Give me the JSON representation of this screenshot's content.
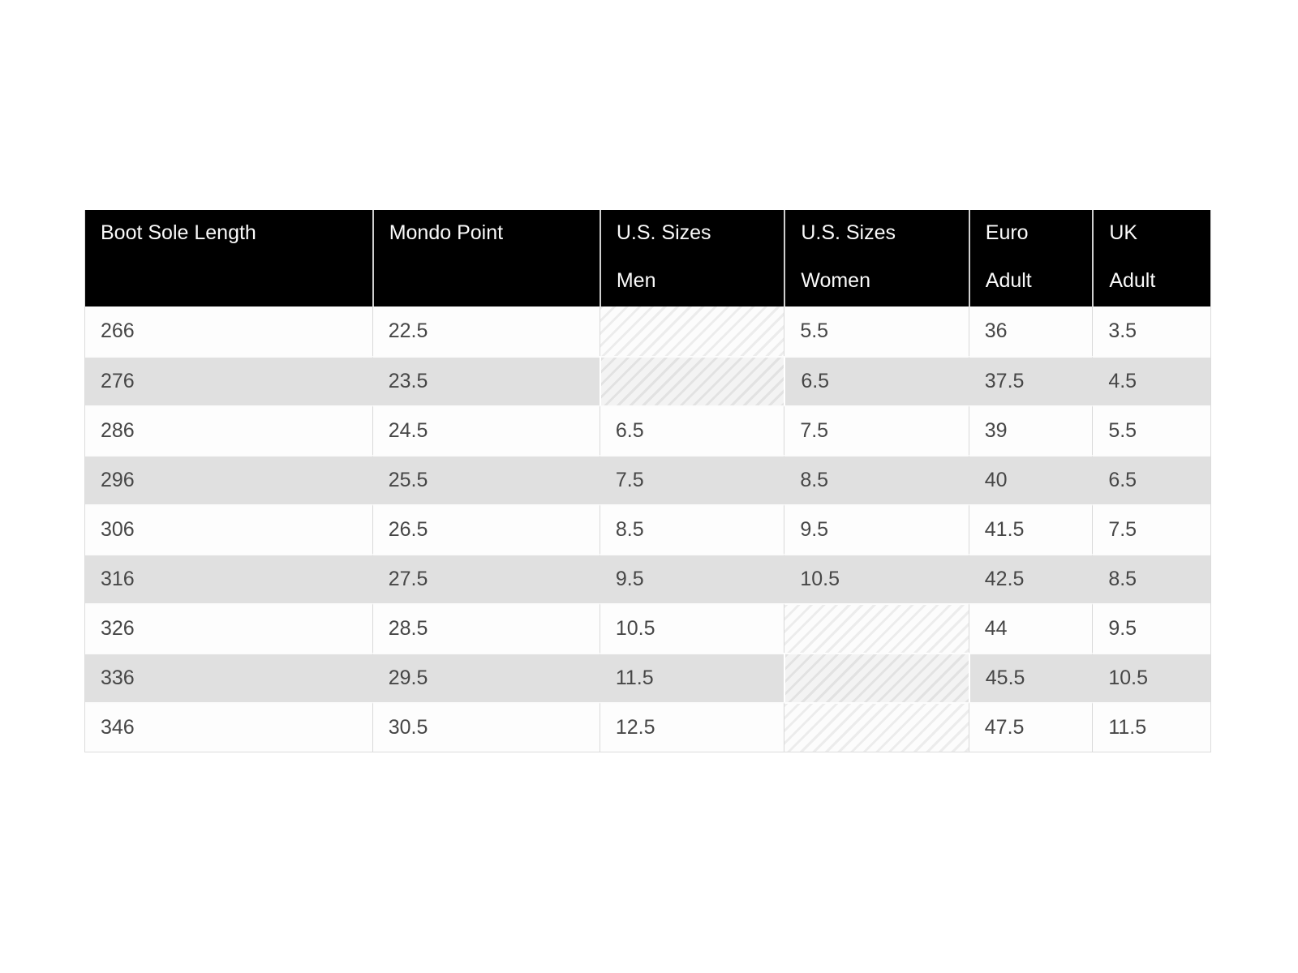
{
  "chart_data": {
    "type": "table",
    "columns": [
      {
        "id": "boot-sole-length",
        "line1": "Boot Sole Length",
        "line2": ""
      },
      {
        "id": "mondo-point",
        "line1": "Mondo Point",
        "line2": ""
      },
      {
        "id": "us-sizes-men",
        "line1": "U.S. Sizes",
        "line2": "Men"
      },
      {
        "id": "us-sizes-women",
        "line1": "U.S. Sizes",
        "line2": "Women"
      },
      {
        "id": "euro-adult",
        "line1": "Euro",
        "line2": "Adult"
      },
      {
        "id": "uk-adult",
        "line1": "UK",
        "line2": "Adult"
      }
    ],
    "rows": [
      [
        "266",
        "22.5",
        null,
        "5.5",
        "36",
        "3.5"
      ],
      [
        "276",
        "23.5",
        null,
        "6.5",
        "37.5",
        "4.5"
      ],
      [
        "286",
        "24.5",
        "6.5",
        "7.5",
        "39",
        "5.5"
      ],
      [
        "296",
        "25.5",
        "7.5",
        "8.5",
        "40",
        "6.5"
      ],
      [
        "306",
        "26.5",
        "8.5",
        "9.5",
        "41.5",
        "7.5"
      ],
      [
        "316",
        "27.5",
        "9.5",
        "10.5",
        "42.5",
        "8.5"
      ],
      [
        "326",
        "28.5",
        "10.5",
        null,
        "44",
        "9.5"
      ],
      [
        "336",
        "29.5",
        "11.5",
        null,
        "45.5",
        "10.5"
      ],
      [
        "346",
        "30.5",
        "12.5",
        null,
        "47.5",
        "11.5"
      ]
    ],
    "empty_cell_style": "diagonal-hatch",
    "colors": {
      "page_bg": "#ffffff",
      "header_bg": "#000000",
      "header_text": "#fafafa",
      "row_bg": "#fdfdfd",
      "row_alt_bg": "#e0e0e0",
      "cell_text": "#464646",
      "divider": "#d9d9d9"
    }
  }
}
